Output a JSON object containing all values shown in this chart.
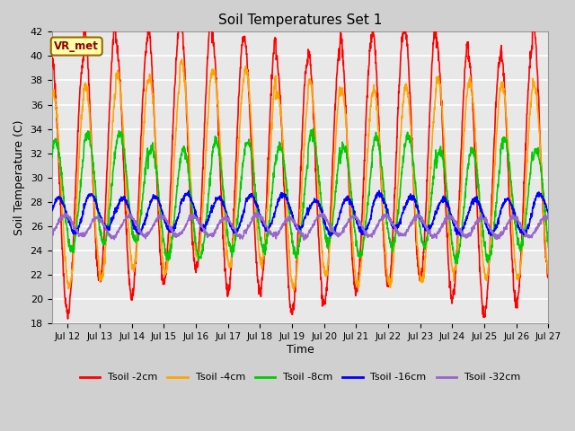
{
  "title": "Soil Temperatures Set 1",
  "xlabel": "Time",
  "ylabel": "Soil Temperature (C)",
  "ylim": [
    18,
    42
  ],
  "yticks": [
    18,
    20,
    22,
    24,
    26,
    28,
    30,
    32,
    34,
    36,
    38,
    40,
    42
  ],
  "xlim_days": [
    11.5,
    27.0
  ],
  "xtick_positions": [
    12,
    13,
    14,
    15,
    16,
    17,
    18,
    19,
    20,
    21,
    22,
    23,
    24,
    25,
    26,
    27
  ],
  "xtick_labels": [
    "Jul 12",
    "Jul 13",
    "Jul 14",
    "Jul 15",
    "Jul 16",
    "Jul 17",
    "Jul 18",
    "Jul 19",
    "Jul 20",
    "Jul 21",
    "Jul 22",
    "Jul 23",
    "Jul 24",
    "Jul 25",
    "Jul 26",
    "Jul 27"
  ],
  "bg_color": "#d0d0d0",
  "plot_bg_color": "#e8e8e8",
  "grid_color": "white",
  "legend_labels": [
    "Tsoil -2cm",
    "Tsoil -4cm",
    "Tsoil -8cm",
    "Tsoil -16cm",
    "Tsoil -32cm"
  ],
  "line_colors": [
    "red",
    "orange",
    "#00cc00",
    "blue",
    "#9966cc"
  ],
  "line_widths": [
    1.2,
    1.2,
    1.2,
    1.2,
    1.2
  ],
  "annotation_text": "VR_met",
  "annotation_box_color": "#ffffaa",
  "annotation_border_color": "#996600",
  "n_pts": 2000,
  "t_start": 11.5,
  "t_end": 27.0,
  "means": [
    31.0,
    30.0,
    28.5,
    27.0,
    26.0
  ],
  "amplitudes": [
    10.5,
    8.0,
    4.5,
    1.4,
    0.8
  ],
  "phase_shifts": [
    0.0,
    0.05,
    0.12,
    0.22,
    0.42
  ],
  "noise_levels": [
    0.25,
    0.2,
    0.2,
    0.12,
    0.1
  ],
  "day_var_scale": [
    2.0,
    1.5,
    0.8,
    0.3,
    0.15
  ]
}
